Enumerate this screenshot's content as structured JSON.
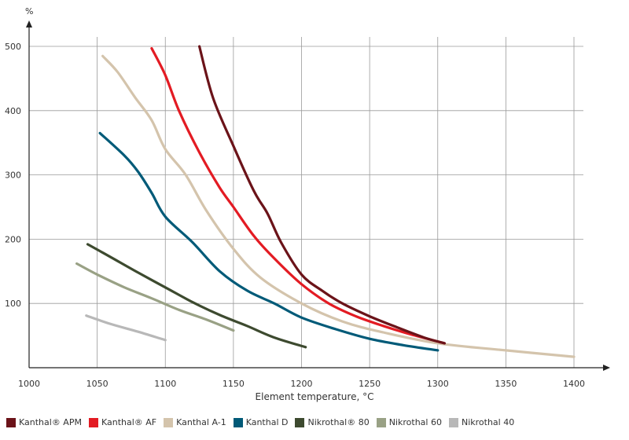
{
  "chart_data": {
    "type": "line",
    "title": "",
    "xlabel": "Element temperature, °C",
    "ylabel": "%",
    "xlim": [
      1000,
      1400
    ],
    "ylim": [
      0,
      500
    ],
    "x_ticks": [
      1000,
      1050,
      1100,
      1150,
      1200,
      1250,
      1300,
      1350,
      1400
    ],
    "y_ticks": [
      100,
      200,
      300,
      400,
      500
    ],
    "grid": true,
    "legend_position": "bottom",
    "series": [
      {
        "name": "Kanthal® APM",
        "color": "#6b1319",
        "points": [
          [
            1125,
            500
          ],
          [
            1135,
            420
          ],
          [
            1150,
            345
          ],
          [
            1165,
            275
          ],
          [
            1175,
            240
          ],
          [
            1185,
            195
          ],
          [
            1200,
            145
          ],
          [
            1215,
            120
          ],
          [
            1230,
            100
          ],
          [
            1250,
            80
          ],
          [
            1270,
            63
          ],
          [
            1290,
            47
          ],
          [
            1305,
            38
          ]
        ]
      },
      {
        "name": "Kanthal® AF",
        "color": "#e31b23",
        "points": [
          [
            1090,
            497
          ],
          [
            1100,
            455
          ],
          [
            1110,
            400
          ],
          [
            1125,
            335
          ],
          [
            1140,
            280
          ],
          [
            1150,
            250
          ],
          [
            1165,
            205
          ],
          [
            1180,
            170
          ],
          [
            1200,
            130
          ],
          [
            1220,
            100
          ],
          [
            1240,
            80
          ],
          [
            1260,
            65
          ],
          [
            1280,
            52
          ],
          [
            1305,
            38
          ]
        ]
      },
      {
        "name": "Kanthal A-1",
        "color": "#d4c4ac",
        "points": [
          [
            1054,
            485
          ],
          [
            1065,
            460
          ],
          [
            1078,
            420
          ],
          [
            1090,
            385
          ],
          [
            1100,
            340
          ],
          [
            1115,
            300
          ],
          [
            1130,
            245
          ],
          [
            1150,
            185
          ],
          [
            1170,
            140
          ],
          [
            1200,
            100
          ],
          [
            1230,
            72
          ],
          [
            1260,
            55
          ],
          [
            1300,
            38
          ],
          [
            1350,
            27
          ],
          [
            1400,
            17
          ]
        ]
      },
      {
        "name": "Kanthal D",
        "color": "#005a78",
        "points": [
          [
            1052,
            365
          ],
          [
            1070,
            330
          ],
          [
            1080,
            305
          ],
          [
            1090,
            272
          ],
          [
            1100,
            235
          ],
          [
            1120,
            195
          ],
          [
            1140,
            150
          ],
          [
            1160,
            120
          ],
          [
            1180,
            100
          ],
          [
            1200,
            78
          ],
          [
            1225,
            60
          ],
          [
            1250,
            45
          ],
          [
            1275,
            35
          ],
          [
            1300,
            27
          ]
        ]
      },
      {
        "name": "Nikrothal® 80",
        "color": "#3d4a2f",
        "points": [
          [
            1043,
            192
          ],
          [
            1060,
            172
          ],
          [
            1080,
            148
          ],
          [
            1100,
            125
          ],
          [
            1120,
            102
          ],
          [
            1140,
            82
          ],
          [
            1160,
            65
          ],
          [
            1180,
            47
          ],
          [
            1203,
            32
          ]
        ]
      },
      {
        "name": "Nikrothal 60",
        "color": "#99a185",
        "points": [
          [
            1035,
            162
          ],
          [
            1050,
            145
          ],
          [
            1070,
            125
          ],
          [
            1090,
            108
          ],
          [
            1110,
            90
          ],
          [
            1130,
            75
          ],
          [
            1150,
            58
          ]
        ]
      },
      {
        "name": "Nikrothal 40",
        "color": "#b8b8b8",
        "points": [
          [
            1042,
            81
          ],
          [
            1060,
            68
          ],
          [
            1080,
            56
          ],
          [
            1100,
            43
          ]
        ]
      }
    ]
  }
}
